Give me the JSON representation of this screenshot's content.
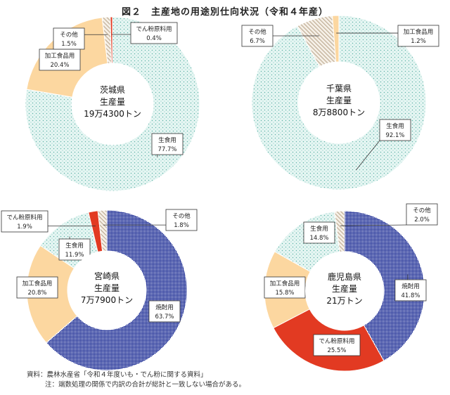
{
  "title": "図２　主産地の用途別仕向状況（令和４年産）",
  "notes": {
    "source": "資料：農林水産省「令和４年度いも・でん粉に関する資料」",
    "note": "注：端数処理の関係で内訳の合計が総計と一致しない場合がある。"
  },
  "colors": {
    "生食用": "#d9f1ee",
    "加工食品用": "#fcd7a0",
    "でん粉原料用": "#e23a22",
    "焼酎用": "#3a4aa8",
    "その他": "#eadfcf"
  },
  "chart_data": [
    {
      "type": "pie",
      "center_lines": [
        "茨城県",
        "生産量",
        "19万4300トン"
      ],
      "slices": [
        {
          "name": "生食用",
          "value": 77.7
        },
        {
          "name": "加工食品用",
          "value": 20.4
        },
        {
          "name": "その他",
          "value": 1.5
        },
        {
          "name": "でん粉原料用",
          "value": 0.4
        }
      ]
    },
    {
      "type": "pie",
      "center_lines": [
        "千葉県",
        "生産量",
        "8万8800トン"
      ],
      "slices": [
        {
          "name": "生食用",
          "value": 92.1
        },
        {
          "name": "その他",
          "value": 6.7
        },
        {
          "name": "加工食品用",
          "value": 1.2
        }
      ]
    },
    {
      "type": "pie",
      "center_lines": [
        "宮崎県",
        "生産量",
        "7万7900トン"
      ],
      "slices": [
        {
          "name": "焼酎用",
          "value": 63.7
        },
        {
          "name": "加工食品用",
          "value": 20.8
        },
        {
          "name": "生食用",
          "value": 11.9
        },
        {
          "name": "でん粉原料用",
          "value": 1.9
        },
        {
          "name": "その他",
          "value": 1.8
        }
      ]
    },
    {
      "type": "pie",
      "center_lines": [
        "鹿児島県",
        "生産量",
        "21万トン"
      ],
      "slices": [
        {
          "name": "焼酎用",
          "value": 41.8
        },
        {
          "name": "でん粉原料用",
          "value": 25.5
        },
        {
          "name": "加工食品用",
          "value": 15.8
        },
        {
          "name": "生食用",
          "value": 14.8
        },
        {
          "name": "その他",
          "value": 2.0
        }
      ]
    }
  ]
}
